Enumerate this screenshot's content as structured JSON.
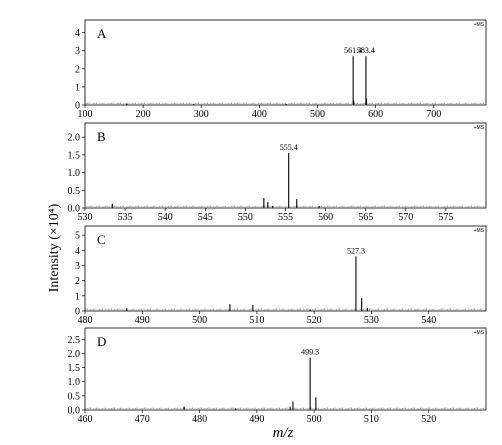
{
  "ylabel": "Intensity (×10⁴)",
  "xlabel": "m/z",
  "chart_data": [
    {
      "type": "bar",
      "panel_label": "A",
      "ms_tag": "+MS",
      "xlim": [
        100,
        790
      ],
      "ylim": [
        0,
        4.7
      ],
      "xticks": [
        100,
        200,
        300,
        400,
        500,
        600,
        700
      ],
      "yticks": [
        0,
        1,
        2,
        3,
        4
      ],
      "peaks": [
        {
          "mz": 561.4,
          "intensity": 2.7,
          "label": "561.4"
        },
        {
          "mz": 583.4,
          "intensity": 2.7,
          "label": "583.4"
        },
        {
          "mz": 562.4,
          "intensity": 0.25
        },
        {
          "mz": 584.4,
          "intensity": 0.35
        },
        {
          "mz": 172,
          "intensity": 0.06
        },
        {
          "mz": 287,
          "intensity": 0.05
        },
        {
          "mz": 446,
          "intensity": 0.05
        }
      ]
    },
    {
      "type": "bar",
      "panel_label": "B",
      "ms_tag": "+MS",
      "xlim": [
        530,
        580
      ],
      "ylim": [
        0,
        2.4
      ],
      "xticks": [
        530,
        535,
        540,
        545,
        550,
        555,
        560,
        565,
        570,
        575
      ],
      "yticks": [
        0.0,
        0.5,
        1.0,
        1.5,
        2.0
      ],
      "peaks": [
        {
          "mz": 555.4,
          "intensity": 1.55,
          "label": "555.4"
        },
        {
          "mz": 556.4,
          "intensity": 0.25
        },
        {
          "mz": 552.3,
          "intensity": 0.28
        },
        {
          "mz": 552.8,
          "intensity": 0.16
        },
        {
          "mz": 553.4,
          "intensity": 0.06
        },
        {
          "mz": 533.4,
          "intensity": 0.12
        },
        {
          "mz": 559.2,
          "intensity": 0.05
        }
      ]
    },
    {
      "type": "bar",
      "panel_label": "C",
      "ms_tag": "+MS",
      "xlim": [
        480,
        550
      ],
      "ylim": [
        0,
        5.6
      ],
      "xticks": [
        480,
        490,
        500,
        510,
        520,
        530,
        540
      ],
      "yticks": [
        0,
        1,
        2,
        3,
        4,
        5
      ],
      "peaks": [
        {
          "mz": 527.3,
          "intensity": 3.6,
          "label": "527.3"
        },
        {
          "mz": 528.3,
          "intensity": 0.85
        },
        {
          "mz": 529.3,
          "intensity": 0.2
        },
        {
          "mz": 505.3,
          "intensity": 0.45
        },
        {
          "mz": 509.3,
          "intensity": 0.4
        },
        {
          "mz": 487.3,
          "intensity": 0.18
        },
        {
          "mz": 519.3,
          "intensity": 0.1
        }
      ]
    },
    {
      "type": "bar",
      "panel_label": "D",
      "ms_tag": "+MS",
      "xlim": [
        460,
        530
      ],
      "ylim": [
        0,
        2.9
      ],
      "xticks": [
        460,
        470,
        480,
        490,
        500,
        510,
        520
      ],
      "yticks": [
        0.0,
        0.5,
        1.0,
        1.5,
        2.0,
        2.5
      ],
      "peaks": [
        {
          "mz": 499.3,
          "intensity": 1.85,
          "label": "499.3"
        },
        {
          "mz": 500.3,
          "intensity": 0.45
        },
        {
          "mz": 496.3,
          "intensity": 0.3
        },
        {
          "mz": 495.8,
          "intensity": 0.12
        },
        {
          "mz": 477.3,
          "intensity": 0.12
        },
        {
          "mz": 486.3,
          "intensity": 0.06
        }
      ]
    }
  ]
}
